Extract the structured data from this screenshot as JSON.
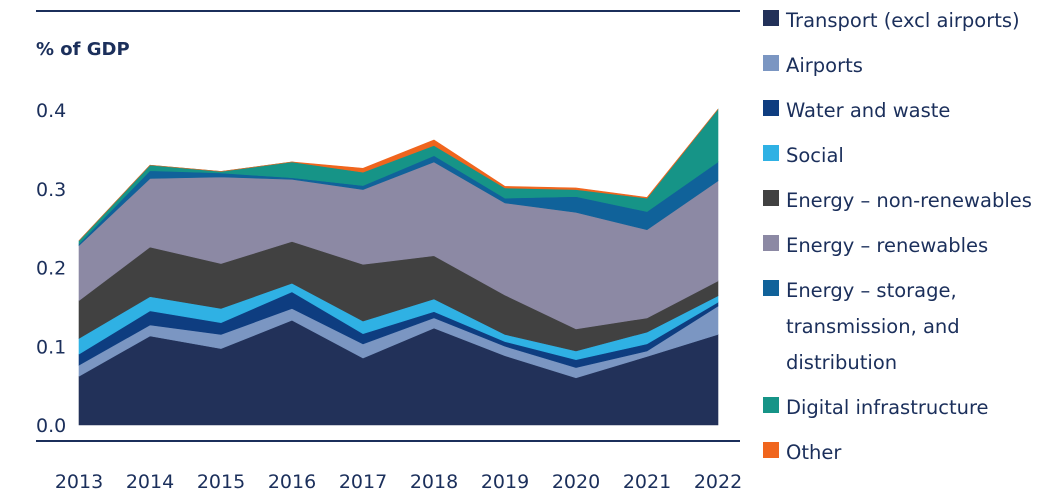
{
  "chart_data": {
    "type": "area",
    "stacked": true,
    "ylabel": "% of GDP",
    "ylim": [
      0,
      0.4
    ],
    "yticks": [
      "0.0",
      "0.1",
      "0.2",
      "0.3",
      "0.4"
    ],
    "x": [
      "2013",
      "2014",
      "2015",
      "2016",
      "2017",
      "2018",
      "2019",
      "2020",
      "2021",
      "2022"
    ],
    "legend_position": "right",
    "series": [
      {
        "name": "Transport (excl airports)",
        "color": "#223159",
        "values": [
          0.062,
          0.113,
          0.097,
          0.133,
          0.085,
          0.123,
          0.088,
          0.06,
          0.087,
          0.115
        ]
      },
      {
        "name": "Airports",
        "color": "#7b96c2",
        "values": [
          0.014,
          0.014,
          0.018,
          0.015,
          0.018,
          0.013,
          0.012,
          0.013,
          0.007,
          0.036
        ]
      },
      {
        "name": "Water and waste",
        "color": "#0e3d80",
        "values": [
          0.014,
          0.018,
          0.015,
          0.021,
          0.013,
          0.008,
          0.006,
          0.01,
          0.009,
          0.005
        ]
      },
      {
        "name": "Social",
        "color": "#2fb1e4",
        "values": [
          0.02,
          0.018,
          0.018,
          0.011,
          0.016,
          0.016,
          0.009,
          0.011,
          0.015,
          0.008
        ]
      },
      {
        "name": "Energy – non-renewables",
        "color": "#414141",
        "values": [
          0.048,
          0.063,
          0.057,
          0.053,
          0.072,
          0.055,
          0.05,
          0.028,
          0.018,
          0.019
        ]
      },
      {
        "name": "Energy – renewables",
        "color": "#8c89a4",
        "values": [
          0.07,
          0.087,
          0.11,
          0.079,
          0.095,
          0.119,
          0.117,
          0.148,
          0.112,
          0.127
        ]
      },
      {
        "name": "Energy – storage, transmission, and distribution",
        "color": "#10629a",
        "values": [
          0.002,
          0.01,
          0.005,
          0.002,
          0.005,
          0.008,
          0.006,
          0.02,
          0.023,
          0.024
        ]
      },
      {
        "name": "Digital infrastructure",
        "color": "#169487",
        "values": [
          0.004,
          0.007,
          0.002,
          0.02,
          0.017,
          0.013,
          0.013,
          0.009,
          0.017,
          0.067
        ]
      },
      {
        "name": "Other",
        "color": "#f0651d",
        "values": [
          0.0,
          0.0,
          0.0,
          0.0,
          0.005,
          0.007,
          0.002,
          0.002,
          0.001,
          0.0
        ]
      }
    ]
  }
}
